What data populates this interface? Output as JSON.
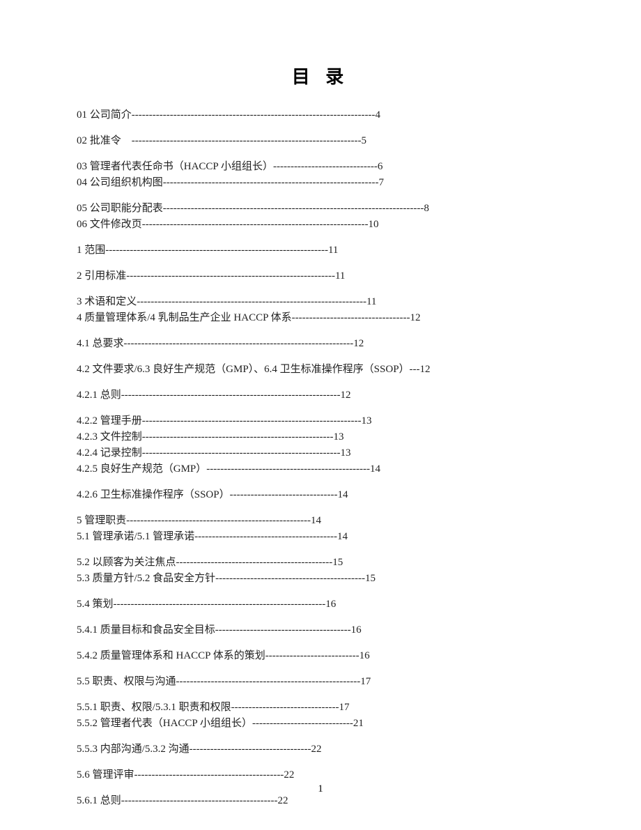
{
  "title": "目 录",
  "page_number": "1",
  "text_color": "#222222",
  "background_color": "#ffffff",
  "title_fontsize": 26,
  "body_fontsize": 15,
  "entries": [
    {
      "label": "01 公司简介",
      "leader": "----------------------------------------------------------------------",
      "page": "4",
      "gap_before": 0
    },
    {
      "label": "02 批准令　",
      "leader": "------------------------------------------------------------------",
      "page": "5",
      "gap_before": 16
    },
    {
      "label": "03 管理者代表任命书（HACCP 小组组长）",
      "leader": "------------------------------",
      "page": "6",
      "gap_before": 16
    },
    {
      "label": "04 公司组织机构图",
      "leader": "--------------------------------------------------------------",
      "page": "7",
      "gap_before": 2
    },
    {
      "label": "05 公司职能分配表",
      "leader": "--------------------------------------------------------------------------",
      "page": "-8",
      "gap_before": 16
    },
    {
      "label": "06 文件修改页",
      "leader": "-----------------------------------------------------------------",
      "page": "10",
      "gap_before": 2
    },
    {
      "label": "1 范围",
      "leader": "----------------------------------------------------------------",
      "page": "11",
      "gap_before": 16
    },
    {
      "label": "2 引用标准",
      "leader": "------------------------------------------------------------",
      "page": "11",
      "gap_before": 16
    },
    {
      "label": "3 术语和定义",
      "leader": "------------------------------------------------------------------",
      "page": "11",
      "gap_before": 16
    },
    {
      "label": "4 质量管理体系/4 乳制品生产企业 HACCP 体系",
      "leader": "----------------------------------",
      "page": "12",
      "gap_before": 2
    },
    {
      "label": "4.1 总要求",
      "leader": "------------------------------------------------------------------",
      "page": "12",
      "gap_before": 16
    },
    {
      "label": "4.2 文件要求/6.3 良好生产规范（GMP）、6.4 卫生标准操作程序（SSOP）---",
      "leader": "",
      "page": "12",
      "gap_before": 16
    },
    {
      "label": "4.2.1 总则",
      "leader": "---------------------------------------------------------------",
      "page": "12",
      "gap_before": 16
    },
    {
      "label": "4.2.2 管理手册",
      "leader": "---------------------------------------------------------------",
      "page": "13",
      "gap_before": 16
    },
    {
      "label": "4.2.3 文件控制",
      "leader": "-------------------------------------------------------",
      "page": "13",
      "gap_before": 2
    },
    {
      "label": "4.2.4 记录控制",
      "leader": "---------------------------------------------------------",
      "page": "13",
      "gap_before": 2
    },
    {
      "label": "4.2.5 良好生产规范（GMP）",
      "leader": "-----------------------------------------------",
      "page": "14",
      "gap_before": 2
    },
    {
      "label": "4.2.6 卫生标准操作程序（SSOP）",
      "leader": "-------------------------------",
      "page": "14",
      "gap_before": 16
    },
    {
      "label": "5 管理职责",
      "leader": "-----------------------------------------------------",
      "page": "14",
      "gap_before": 16
    },
    {
      "label": "5.1 管理承诺/5.1 管理承诺",
      "leader": "-----------------------------------------",
      "page": "14",
      "gap_before": 2
    },
    {
      "label": "5.2 以顾客为关注焦点",
      "leader": "---------------------------------------------",
      "page": "15",
      "gap_before": 16
    },
    {
      "label": "5.3 质量方针/5.2 食品安全方针",
      "leader": "-------------------------------------------",
      "page": "15",
      "gap_before": 2
    },
    {
      "label": "5.4 策划",
      "leader": "-------------------------------------------------------------",
      "page": "16",
      "gap_before": 16
    },
    {
      "label": "5.4.1 质量目标和食品安全目标",
      "leader": "---------------------------------------",
      "page": "16",
      "gap_before": 16
    },
    {
      "label": "5.4.2 质量管理体系和 HACCP 体系的策划",
      "leader": "---------------------------",
      "page": "16",
      "gap_before": 16
    },
    {
      "label": "5.5 职责、权限与沟通",
      "leader": "-----------------------------------------------------",
      "page": "17",
      "gap_before": 16
    },
    {
      "label": "5.5.1 职责、权限/5.3.1 职责和权限",
      "leader": "-------------------------------",
      "page": "17",
      "gap_before": 16
    },
    {
      "label": "5.5.2 管理者代表（HACCP 小组组长）",
      "leader": "-----------------------------",
      "page": "21",
      "gap_before": 2
    },
    {
      "label": "5.5.3 内部沟通/5.3.2 沟通",
      "leader": "-----------------------------------",
      "page": "22",
      "gap_before": 16
    },
    {
      "label": "5.6 管理评审",
      "leader": "-------------------------------------------",
      "page": "22",
      "gap_before": 16
    },
    {
      "label": "5.6.1 总则",
      "leader": "---------------------------------------------",
      "page": "22",
      "gap_before": 16
    }
  ]
}
